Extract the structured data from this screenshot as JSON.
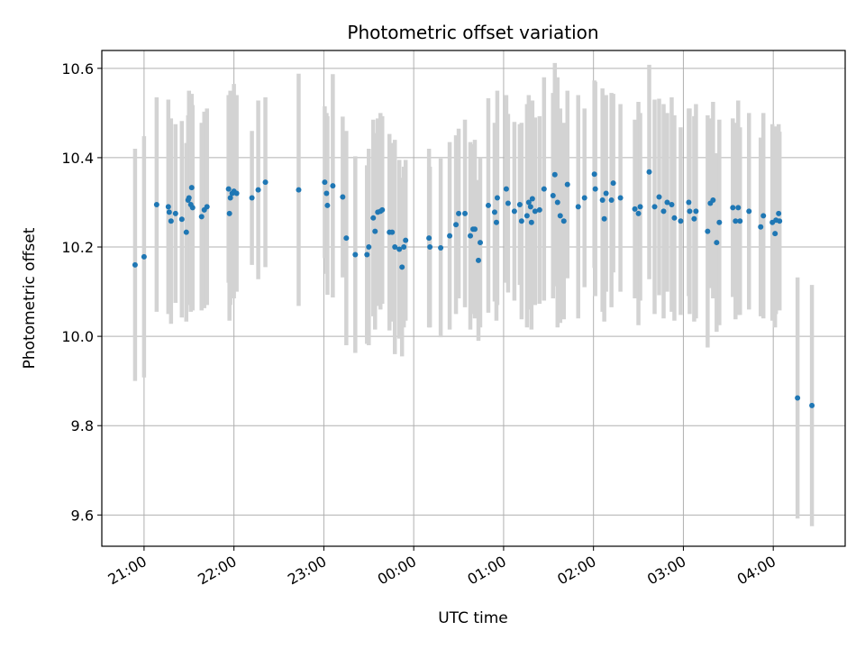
{
  "chart_data": {
    "type": "scatter",
    "title": "Photometric offset variation",
    "xlabel": "UTC time",
    "ylabel": "Photometric offset",
    "grid": true,
    "x_axis": {
      "ticks": [
        "21:00",
        "22:00",
        "23:00",
        "00:00",
        "01:00",
        "02:00",
        "03:00",
        "04:00"
      ],
      "tick_values_hours": [
        21,
        22,
        23,
        24,
        25,
        26,
        27,
        28
      ],
      "xlim_hours": [
        20.53,
        28.8
      ]
    },
    "y_axis": {
      "ticks": [
        "9.6",
        "9.8",
        "10.0",
        "10.2",
        "10.4",
        "10.6"
      ],
      "tick_values": [
        9.6,
        9.8,
        10.0,
        10.2,
        10.4,
        10.6
      ],
      "ylim": [
        9.53,
        10.64
      ]
    },
    "colors": {
      "point": "#1f77b4",
      "error_bar": "#d3d3d3",
      "grid": "#b0b0b0"
    },
    "series": [
      {
        "t": [
          20.9,
          21,
          21.14,
          21.27,
          21.3,
          21.28,
          21.35,
          21.42,
          21.47,
          21.49,
          21.5,
          21.52,
          21.53,
          21.54,
          21.64,
          21.67,
          21.7,
          21.94,
          21.95,
          21.96,
          21.98,
          22,
          22.03,
          22.2,
          22.27,
          22.35,
          22.72,
          23.01,
          23.03,
          23.04,
          23.1,
          23.21,
          23.25,
          23.35,
          23.48,
          23.5,
          23.55,
          23.57,
          23.6,
          23.63,
          23.65,
          23.73,
          23.76,
          23.79,
          23.84,
          23.87,
          23.89,
          23.91,
          24.17,
          24.18,
          24.3,
          24.4,
          24.47,
          24.5,
          24.57,
          24.63,
          24.66,
          24.68,
          24.72,
          24.74,
          24.83,
          24.9,
          24.92,
          24.93,
          25.03,
          25.05,
          25.12,
          25.18,
          25.2,
          25.26,
          25.28,
          25.3,
          25.31,
          25.32,
          25.35,
          25.4,
          25.45,
          25.55,
          25.57,
          25.6,
          25.63,
          25.67,
          25.71,
          25.83,
          25.9,
          26.01,
          26.02,
          26.1,
          26.12,
          26.14,
          26.2,
          26.22,
          26.3,
          26.46,
          26.5,
          26.52,
          26.62,
          26.68,
          26.73,
          26.78,
          26.82,
          26.87,
          26.9,
          26.97,
          27.06,
          27.07,
          27.12,
          27.14,
          27.27,
          27.3,
          27.33,
          27.37,
          27.4,
          27.55,
          27.58,
          27.61,
          27.63,
          27.73,
          27.86,
          27.89,
          27.99,
          28.02,
          28.03,
          28.06,
          28.07,
          28.27,
          28.43
        ],
        "y": [
          10.16,
          10.178,
          10.295,
          10.29,
          10.258,
          10.278,
          10.275,
          10.262,
          10.233,
          10.305,
          10.31,
          10.295,
          10.333,
          10.288,
          10.268,
          10.283,
          10.29,
          10.33,
          10.275,
          10.31,
          10.32,
          10.325,
          10.32,
          10.31,
          10.328,
          10.345,
          10.328,
          10.345,
          10.32,
          10.293,
          10.337,
          10.312,
          10.22,
          10.183,
          10.183,
          10.2,
          10.265,
          10.235,
          10.278,
          10.28,
          10.283,
          10.233,
          10.233,
          10.2,
          10.195,
          10.155,
          10.2,
          10.215,
          10.22,
          10.2,
          10.198,
          10.225,
          10.25,
          10.275,
          10.275,
          10.225,
          10.24,
          10.24,
          10.17,
          10.21,
          10.293,
          10.278,
          10.255,
          10.31,
          10.33,
          10.298,
          10.28,
          10.295,
          10.258,
          10.27,
          10.3,
          10.29,
          10.255,
          10.308,
          10.28,
          10.283,
          10.33,
          10.315,
          10.362,
          10.3,
          10.27,
          10.258,
          10.34,
          10.29,
          10.31,
          10.363,
          10.33,
          10.305,
          10.263,
          10.32,
          10.305,
          10.343,
          10.31,
          10.285,
          10.275,
          10.29,
          10.368,
          10.29,
          10.312,
          10.28,
          10.3,
          10.295,
          10.265,
          10.258,
          10.3,
          10.28,
          10.263,
          10.28,
          10.235,
          10.298,
          10.305,
          10.21,
          10.255,
          10.288,
          10.258,
          10.288,
          10.258,
          10.28,
          10.245,
          10.27,
          10.255,
          10.23,
          10.26,
          10.275,
          10.258,
          9.862,
          9.845
        ],
        "err": [
          0.26,
          0.27,
          0.24,
          0.24,
          0.23,
          0.2,
          0.2,
          0.22,
          0.2,
          0.19,
          0.24,
          0.24,
          0.21,
          0.23,
          0.21,
          0.22,
          0.22,
          0.21,
          0.24,
          0.24,
          0.22,
          0.24,
          0.22,
          0.15,
          0.2,
          0.19,
          0.26,
          0.17,
          0.18,
          0.2,
          0.25,
          0.18,
          0.24,
          0.22,
          0.2,
          0.22,
          0.22,
          0.22,
          0.21,
          0.22,
          0.21,
          0.22,
          0.2,
          0.24,
          0.2,
          0.2,
          0.18,
          0.18,
          0.2,
          0.18,
          0.2,
          0.21,
          0.2,
          0.19,
          0.21,
          0.21,
          0.19,
          0.2,
          0.18,
          0.19,
          0.24,
          0.2,
          0.22,
          0.24,
          0.21,
          0.2,
          0.2,
          0.18,
          0.22,
          0.25,
          0.24,
          0.22,
          0.24,
          0.22,
          0.21,
          0.21,
          0.25,
          0.23,
          0.25,
          0.28,
          0.24,
          0.22,
          0.21,
          0.25,
          0.2,
          0.21,
          0.24,
          0.25,
          0.23,
          0.22,
          0.24,
          0.2,
          0.21,
          0.2,
          0.25,
          0.21,
          0.24,
          0.24,
          0.22,
          0.24,
          0.2,
          0.24,
          0.23,
          0.21,
          0.21,
          0.23,
          0.23,
          0.24,
          0.26,
          0.19,
          0.22,
          0.2,
          0.23,
          0.2,
          0.22,
          0.24,
          0.21,
          0.22,
          0.2,
          0.23,
          0.22,
          0.21,
          0.21,
          0.2,
          0.2,
          0.27,
          0.27
        ]
      }
    ]
  }
}
